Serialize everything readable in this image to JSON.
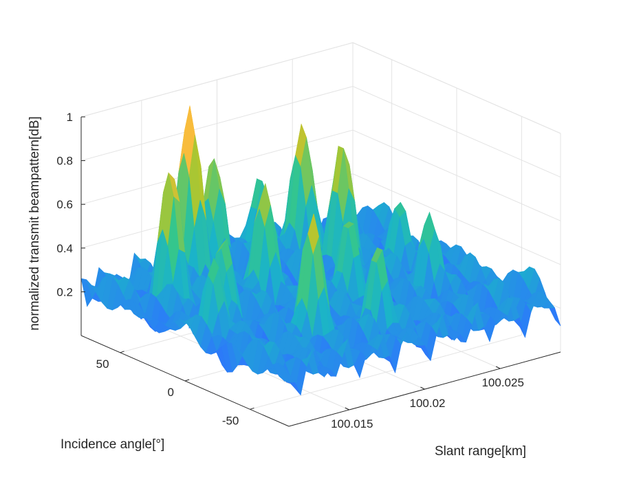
{
  "chart_data": {
    "type": "surface3d",
    "title": "",
    "xlabel": "Slant range[km]",
    "ylabel": "Incidence angle[°]",
    "zlabel": "normalized transmit beampattern[dB]",
    "xlim": [
      100.011,
      100.029
    ],
    "ylim": [
      -80,
      80
    ],
    "zlim": [
      0,
      1
    ],
    "x_ticks": [
      {
        "value": 100.015,
        "label": "100.015"
      },
      {
        "value": 100.02,
        "label": "100.02"
      },
      {
        "value": 100.025,
        "label": "100.025"
      }
    ],
    "y_ticks": [
      {
        "value": -50,
        "label": "-50"
      },
      {
        "value": 0,
        "label": "0"
      },
      {
        "value": 50,
        "label": "50"
      }
    ],
    "z_ticks": [
      {
        "value": 0.2,
        "label": "0.2"
      },
      {
        "value": 0.4,
        "label": "0.4"
      },
      {
        "value": 0.6,
        "label": "0.6"
      },
      {
        "value": 0.8,
        "label": "0.8"
      },
      {
        "value": 1,
        "label": "1"
      }
    ],
    "grid": true,
    "colormap": [
      "#3e26a8",
      "#2c7bf9",
      "#1bb4c8",
      "#35c68c",
      "#b1c62d",
      "#f8ba3d",
      "#f9fb15"
    ],
    "peaks": [
      {
        "x": 100.0165,
        "y": 60,
        "z": 1.0
      },
      {
        "x": 100.0135,
        "y": 40,
        "z": 0.83
      },
      {
        "x": 100.016,
        "y": -40,
        "z": 0.78
      },
      {
        "x": 100.018,
        "y": 20,
        "z": 0.72
      },
      {
        "x": 100.0235,
        "y": 55,
        "z": 0.8
      },
      {
        "x": 100.024,
        "y": 30,
        "z": 0.78
      },
      {
        "x": 100.021,
        "y": -10,
        "z": 0.6
      },
      {
        "x": 100.0195,
        "y": -50,
        "z": 0.6
      },
      {
        "x": 100.0125,
        "y": -5,
        "z": 0.55
      },
      {
        "x": 100.0255,
        "y": -20,
        "z": 0.55
      },
      {
        "x": 100.022,
        "y": 70,
        "z": 0.55
      },
      {
        "x": 100.014,
        "y": 5,
        "z": 0.6
      },
      {
        "x": 100.0185,
        "y": 65,
        "z": 0.72
      },
      {
        "x": 100.0265,
        "y": 15,
        "z": 0.5
      }
    ]
  }
}
